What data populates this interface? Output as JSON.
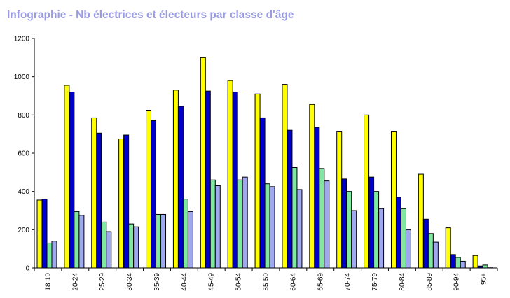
{
  "chart_data": {
    "type": "bar",
    "title": "Infographie - Nb électrices et électeurs par classe d'âge",
    "categories": [
      "18-19",
      "20-24",
      "25-29",
      "30-34",
      "35-39",
      "40-44",
      "45-49",
      "50-54",
      "55-59",
      "60-64",
      "65-69",
      "70-74",
      "75-79",
      "80-84",
      "85-89",
      "90-94",
      "95+"
    ],
    "series": [
      {
        "color": "#ffff00",
        "values": [
          355,
          955,
          785,
          675,
          825,
          930,
          1100,
          980,
          910,
          960,
          855,
          715,
          800,
          715,
          490,
          210,
          65
        ]
      },
      {
        "color": "#0000cc",
        "values": [
          360,
          920,
          705,
          695,
          770,
          845,
          925,
          920,
          785,
          720,
          735,
          465,
          475,
          370,
          255,
          70,
          10
        ]
      },
      {
        "color": "#80e8a0",
        "values": [
          130,
          295,
          240,
          230,
          280,
          360,
          460,
          460,
          440,
          525,
          520,
          400,
          400,
          310,
          180,
          55,
          15
        ]
      },
      {
        "color": "#a0a8f0",
        "values": [
          140,
          275,
          190,
          215,
          280,
          295,
          430,
          475,
          425,
          410,
          455,
          300,
          310,
          200,
          135,
          35,
          5
        ]
      }
    ],
    "y_ticks": [
      "0",
      "200",
      "400",
      "600",
      "800",
      "1000",
      "1200"
    ],
    "ylim": [
      0,
      1200
    ],
    "grid": false,
    "legend": "none"
  }
}
